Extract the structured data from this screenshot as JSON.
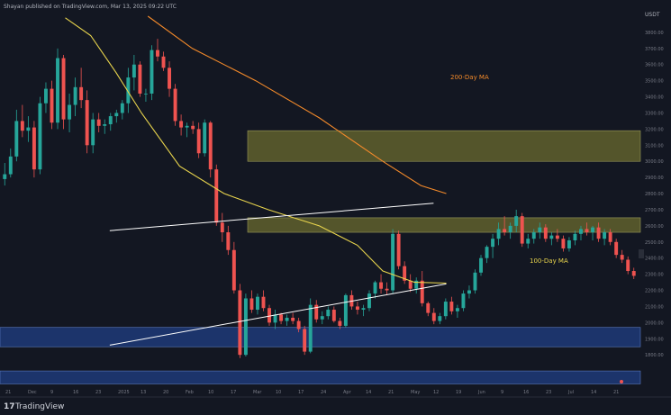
{
  "header": {
    "title": "Shayan published on TradingView.com, Mar 13, 2025 09:22 UTC",
    "currency": "USDT"
  },
  "brand": {
    "logo": "17",
    "name": "TradingView"
  },
  "colors": {
    "background": "#131722",
    "bull": "#26a69a",
    "bear": "#ef5350",
    "ma100": "#e8d44d",
    "ma200": "#f48a2a",
    "resistance_zone": "#6b6b2f",
    "support_zone": "#1f3a78",
    "trendline": "#ffffff",
    "tick_text": "#787b86"
  },
  "chart_data": {
    "type": "candlestick",
    "title": "",
    "xlabel": "",
    "ylabel": "",
    "ylim": [
      1600,
      3900
    ],
    "x_ticks": [
      "21",
      "Dec",
      "9",
      "16",
      "23",
      "2025",
      "13",
      "20",
      "Feb",
      "10",
      "17",
      "Mar",
      "10",
      "17",
      "24",
      "Apr",
      "14",
      "21",
      "May",
      "12",
      "19",
      "Jun",
      "9",
      "16",
      "23",
      "Jul",
      "14",
      "21"
    ],
    "y_ticks": [
      3800,
      3700,
      3600,
      3500,
      3400,
      3300,
      3200,
      3100,
      3000,
      2900,
      2800,
      2700,
      2600,
      2500,
      2400,
      2300,
      2200,
      2100,
      2000,
      1900,
      1800
    ],
    "annotations": [
      "200-Day MA",
      "100-Day MA"
    ],
    "zones": [
      {
        "type": "resistance",
        "low": 3000,
        "high": 3190
      },
      {
        "type": "resistance",
        "low": 2560,
        "high": 2650
      },
      {
        "type": "support",
        "low": 1850,
        "high": 1970
      },
      {
        "type": "support",
        "low": 1620,
        "high": 1700
      }
    ],
    "trendlines": [
      {
        "from": [
          17,
          2570
        ],
        "to": [
          68,
          2740
        ]
      },
      {
        "from": [
          17,
          1860
        ],
        "to": [
          70,
          2240
        ]
      }
    ],
    "moving_averages": [
      {
        "name": "200-Day MA",
        "points": [
          [
            23,
            3900
          ],
          [
            30,
            3700
          ],
          [
            40,
            3500
          ],
          [
            50,
            3270
          ],
          [
            60,
            3000
          ],
          [
            66,
            2850
          ],
          [
            70,
            2800
          ]
        ]
      },
      {
        "name": "100-Day MA",
        "points": [
          [
            10,
            3890
          ],
          [
            14,
            3780
          ],
          [
            18,
            3550
          ],
          [
            22,
            3300
          ],
          [
            28,
            2970
          ],
          [
            35,
            2800
          ],
          [
            42,
            2700
          ],
          [
            50,
            2600
          ],
          [
            56,
            2480
          ],
          [
            60,
            2320
          ],
          [
            65,
            2250
          ],
          [
            70,
            2245
          ]
        ]
      }
    ],
    "candles": [
      [
        2890,
        2990,
        2850,
        2920
      ],
      [
        2920,
        3080,
        2900,
        3030
      ],
      [
        3030,
        3320,
        3000,
        3250
      ],
      [
        3250,
        3350,
        3150,
        3190
      ],
      [
        3190,
        3280,
        3120,
        3210
      ],
      [
        3210,
        3250,
        2900,
        2950
      ],
      [
        2950,
        3400,
        2920,
        3360
      ],
      [
        3360,
        3490,
        3300,
        3450
      ],
      [
        3450,
        3500,
        3200,
        3240
      ],
      [
        3240,
        3700,
        3200,
        3640
      ],
      [
        3640,
        3660,
        3200,
        3260
      ],
      [
        3260,
        3420,
        3180,
        3350
      ],
      [
        3350,
        3520,
        3280,
        3460
      ],
      [
        3460,
        3580,
        3330,
        3380
      ],
      [
        3380,
        3440,
        3050,
        3100
      ],
      [
        3100,
        3300,
        3050,
        3260
      ],
      [
        3260,
        3300,
        3180,
        3220
      ],
      [
        3220,
        3260,
        3170,
        3230
      ],
      [
        3230,
        3300,
        3190,
        3280
      ],
      [
        3280,
        3320,
        3240,
        3300
      ],
      [
        3300,
        3380,
        3260,
        3360
      ],
      [
        3360,
        3580,
        3300,
        3520
      ],
      [
        3520,
        3660,
        3440,
        3600
      ],
      [
        3600,
        3620,
        3400,
        3420
      ],
      [
        3420,
        3450,
        3370,
        3420
      ],
      [
        3420,
        3720,
        3380,
        3690
      ],
      [
        3690,
        3760,
        3620,
        3650
      ],
      [
        3650,
        3680,
        3560,
        3580
      ],
      [
        3580,
        3620,
        3400,
        3450
      ],
      [
        3450,
        3480,
        3220,
        3250
      ],
      [
        3250,
        3290,
        3160,
        3210
      ],
      [
        3210,
        3240,
        3150,
        3220
      ],
      [
        3220,
        3250,
        3170,
        3200
      ],
      [
        3200,
        3240,
        3020,
        3050
      ],
      [
        3050,
        3260,
        3030,
        3240
      ],
      [
        3240,
        3250,
        2900,
        2950
      ],
      [
        2950,
        2980,
        2600,
        2620
      ],
      [
        2620,
        2680,
        2500,
        2560
      ],
      [
        2560,
        2600,
        2420,
        2450
      ],
      [
        2450,
        2500,
        2180,
        2200
      ],
      [
        2200,
        2240,
        1780,
        1800
      ],
      [
        1800,
        2180,
        1790,
        2150
      ],
      [
        2150,
        2200,
        2060,
        2080
      ],
      [
        2080,
        2180,
        2050,
        2160
      ],
      [
        2160,
        2200,
        2070,
        2090
      ],
      [
        2090,
        2110,
        1980,
        2000
      ],
      [
        2000,
        2080,
        1960,
        2050
      ],
      [
        2050,
        2060,
        1990,
        2010
      ],
      [
        2010,
        2050,
        1980,
        2030
      ],
      [
        2030,
        2060,
        1990,
        2010
      ],
      [
        2010,
        2030,
        1940,
        1960
      ],
      [
        1960,
        1980,
        1800,
        1820
      ],
      [
        1820,
        2150,
        1810,
        2110
      ],
      [
        2110,
        2140,
        2000,
        2020
      ],
      [
        2020,
        2070,
        1990,
        2040
      ],
      [
        2040,
        2100,
        2020,
        2080
      ],
      [
        2080,
        2100,
        2000,
        2010
      ],
      [
        2010,
        2030,
        1960,
        1980
      ],
      [
        1980,
        2180,
        1970,
        2170
      ],
      [
        2170,
        2200,
        2080,
        2100
      ],
      [
        2100,
        2130,
        2050,
        2080
      ],
      [
        2080,
        2110,
        2040,
        2090
      ],
      [
        2090,
        2200,
        2070,
        2180
      ],
      [
        2180,
        2260,
        2150,
        2250
      ],
      [
        2250,
        2300,
        2180,
        2210
      ],
      [
        2210,
        2250,
        2170,
        2200
      ],
      [
        2200,
        2580,
        2180,
        2550
      ],
      [
        2550,
        2570,
        2330,
        2350
      ],
      [
        2350,
        2380,
        2240,
        2260
      ],
      [
        2260,
        2300,
        2190,
        2210
      ],
      [
        2210,
        2280,
        2180,
        2260
      ],
      [
        2260,
        2320,
        2100,
        2120
      ],
      [
        2120,
        2130,
        2040,
        2060
      ],
      [
        2060,
        2090,
        1990,
        2010
      ],
      [
        2010,
        2060,
        1990,
        2040
      ],
      [
        2040,
        2150,
        2020,
        2130
      ],
      [
        2130,
        2160,
        2050,
        2070
      ],
      [
        2070,
        2110,
        2030,
        2090
      ],
      [
        2090,
        2200,
        2070,
        2180
      ],
      [
        2180,
        2230,
        2150,
        2200
      ],
      [
        2200,
        2330,
        2180,
        2310
      ],
      [
        2310,
        2420,
        2290,
        2400
      ],
      [
        2400,
        2480,
        2370,
        2470
      ],
      [
        2470,
        2550,
        2400,
        2520
      ],
      [
        2520,
        2620,
        2480,
        2580
      ],
      [
        2580,
        2660,
        2540,
        2560
      ],
      [
        2560,
        2620,
        2520,
        2600
      ],
      [
        2600,
        2700,
        2560,
        2660
      ],
      [
        2660,
        2680,
        2470,
        2490
      ],
      [
        2490,
        2550,
        2460,
        2520
      ],
      [
        2520,
        2580,
        2490,
        2560
      ],
      [
        2560,
        2620,
        2520,
        2590
      ],
      [
        2590,
        2610,
        2500,
        2520
      ],
      [
        2520,
        2560,
        2480,
        2540
      ],
      [
        2540,
        2580,
        2500,
        2520
      ],
      [
        2520,
        2540,
        2440,
        2460
      ],
      [
        2460,
        2530,
        2440,
        2510
      ],
      [
        2510,
        2570,
        2480,
        2550
      ],
      [
        2550,
        2600,
        2510,
        2580
      ],
      [
        2580,
        2620,
        2540,
        2560
      ],
      [
        2560,
        2600,
        2510,
        2590
      ],
      [
        2590,
        2620,
        2500,
        2520
      ],
      [
        2520,
        2580,
        2480,
        2560
      ],
      [
        2560,
        2580,
        2480,
        2500
      ],
      [
        2500,
        2520,
        2400,
        2420
      ],
      [
        2420,
        2450,
        2370,
        2390
      ],
      [
        2390,
        2410,
        2300,
        2320
      ],
      [
        2320,
        2340,
        2270,
        2290
      ]
    ]
  }
}
